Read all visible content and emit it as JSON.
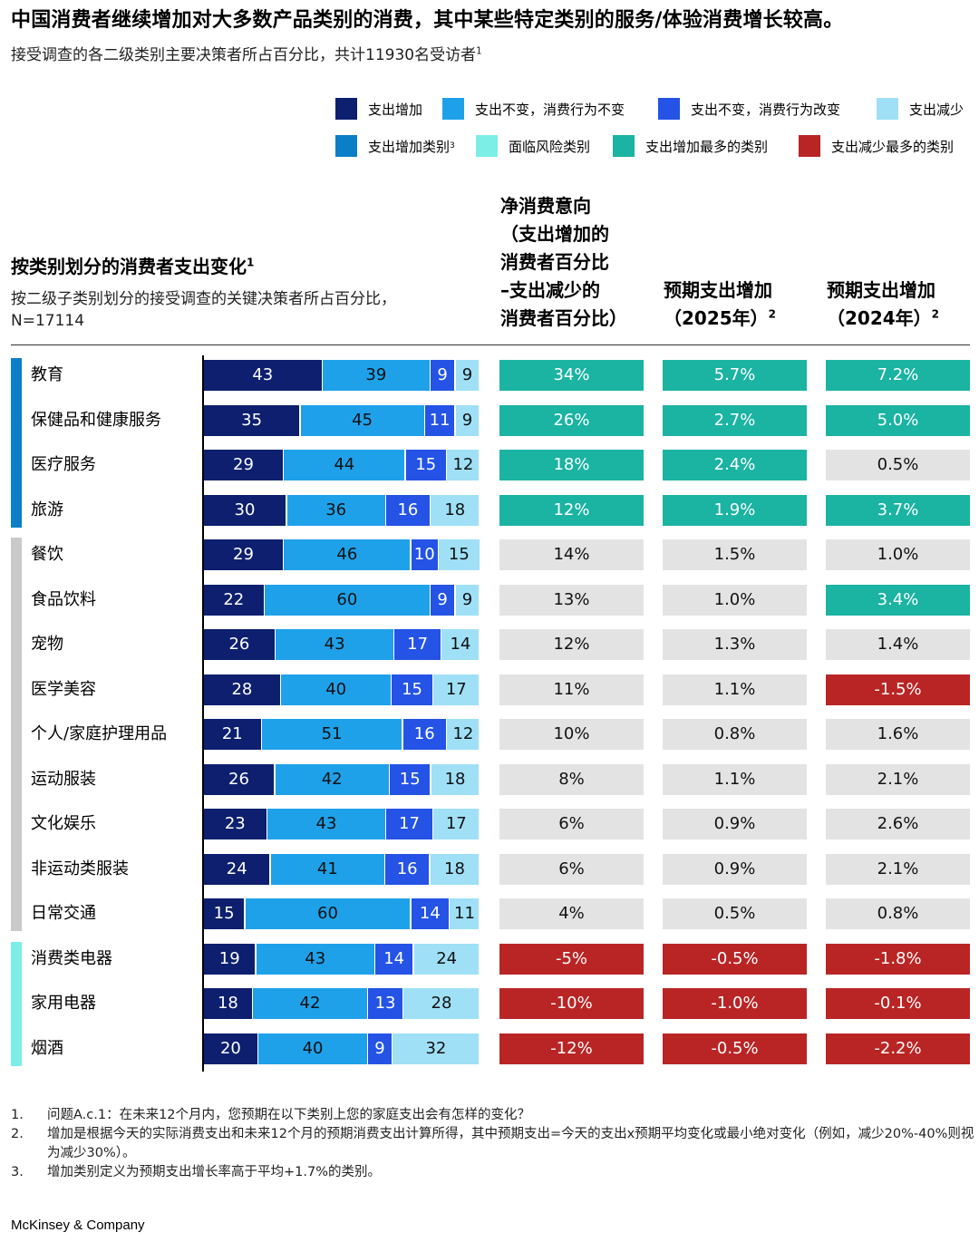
{
  "title": "中国消费者继续增加对大多数产品类别的消费，其中某些特定类别的服务/体验消费增长较高。",
  "subtitle": "接受调查的各二级类别主要决策者所占百分比，共计11930名受访者",
  "subtitle_sup": "1",
  "colors": {
    "increase": "#0d1f6e",
    "same_same": "#1fa1ea",
    "same_change": "#2453e6",
    "decrease": "#9fe0f7",
    "increase_category": "#0a7fc7",
    "at_risk": "#7ceee6",
    "top_increase": "#1bb3a2",
    "top_decrease": "#b92525",
    "neutral": "#e3e3e3"
  },
  "legend": [
    {
      "label": "支出增加",
      "sup": "",
      "color": "#0d1f6e"
    },
    {
      "label": "支出不变，消费行为不变",
      "sup": "",
      "color": "#1fa1ea"
    },
    {
      "label": "支出不变，消费行为改变",
      "sup": "",
      "color": "#2453e6"
    },
    {
      "label": "支出减少",
      "sup": "",
      "color": "#9fe0f7"
    },
    {
      "label": "支出增加类别",
      "sup": "3",
      "color": "#0a7fc7"
    },
    {
      "label": "面临风险类别",
      "sup": "",
      "color": "#7ceee6"
    },
    {
      "label": "支出增加最多的类别",
      "sup": "",
      "color": "#1bb3a2"
    },
    {
      "label": "支出减少最多的类别",
      "sup": "",
      "color": "#b92525"
    }
  ],
  "chart_title": "按类别划分的消费者支出变化",
  "chart_title_sup": "1",
  "chart_subtitle_line1": "按二级子类别划分的接受调查的关键决策者所占百分比，",
  "chart_subtitle_line2": "N=17114",
  "col1_header": [
    "净消费意向",
    "（支出增加的",
    "消费者百分比",
    "–支出减少的",
    "消费者百分比）"
  ],
  "col2_header": [
    "预期支出增加",
    "（2025年）"
  ],
  "col2_header_sup": "2",
  "col3_header": [
    "预期支出增加",
    "（2024年）"
  ],
  "col3_header_sup": "2",
  "chart_data": {
    "type": "bar",
    "stacked": true,
    "orientation": "horizontal",
    "categories": [
      "教育",
      "保健品和健康服务",
      "医疗服务",
      "旅游",
      "餐饮",
      "食品饮料",
      "宠物",
      "医学美容",
      "个人/家庭护理用品",
      "运动服装",
      "文化娱乐",
      "非运动类服装",
      "日常交通",
      "消费类电器",
      "家用电器",
      "烟酒"
    ],
    "groups": [
      {
        "name": "支出增加类别",
        "color": "#0a7fc7",
        "rows": [
          0,
          3
        ]
      },
      {
        "name": "",
        "color": "#c9c9c9",
        "rows": [
          4,
          12
        ]
      },
      {
        "name": "面临风险类别",
        "color": "#7ceee6",
        "rows": [
          13,
          15
        ]
      }
    ],
    "series": [
      {
        "name": "支出增加",
        "color": "#0d1f6e",
        "text_color": "#ffffff",
        "values": [
          43,
          35,
          29,
          30,
          29,
          22,
          26,
          28,
          21,
          26,
          23,
          24,
          15,
          19,
          18,
          20
        ]
      },
      {
        "name": "支出不变，消费行为不变",
        "color": "#1fa1ea",
        "text_color": "#111111",
        "values": [
          39,
          45,
          44,
          36,
          46,
          60,
          43,
          40,
          51,
          42,
          43,
          41,
          60,
          43,
          42,
          40
        ]
      },
      {
        "name": "支出不变，消费行为改变",
        "color": "#2453e6",
        "text_color": "#ffffff",
        "values": [
          9,
          11,
          15,
          16,
          10,
          9,
          17,
          15,
          16,
          15,
          17,
          16,
          14,
          14,
          13,
          9
        ]
      },
      {
        "name": "支出减少",
        "color": "#9fe0f7",
        "text_color": "#111111",
        "values": [
          9,
          9,
          12,
          18,
          15,
          9,
          14,
          17,
          12,
          18,
          17,
          18,
          11,
          24,
          28,
          32
        ]
      }
    ],
    "net_intent": [
      "34%",
      "26%",
      "18%",
      "12%",
      "14%",
      "13%",
      "12%",
      "11%",
      "10%",
      "8%",
      "6%",
      "6%",
      "4%",
      "-5%",
      "-10%",
      "-12%"
    ],
    "net_intent_status": [
      "top_increase",
      "top_increase",
      "top_increase",
      "top_increase",
      "neutral",
      "neutral",
      "neutral",
      "neutral",
      "neutral",
      "neutral",
      "neutral",
      "neutral",
      "neutral",
      "top_decrease",
      "top_decrease",
      "top_decrease"
    ],
    "growth_2025": [
      "5.7%",
      "2.7%",
      "2.4%",
      "1.9%",
      "1.5%",
      "1.0%",
      "1.3%",
      "1.1%",
      "0.8%",
      "1.1%",
      "0.9%",
      "0.9%",
      "0.5%",
      "-0.5%",
      "-1.0%",
      "-0.5%"
    ],
    "growth_2025_status": [
      "top_increase",
      "top_increase",
      "top_increase",
      "top_increase",
      "neutral",
      "neutral",
      "neutral",
      "neutral",
      "neutral",
      "neutral",
      "neutral",
      "neutral",
      "neutral",
      "top_decrease",
      "top_decrease",
      "top_decrease"
    ],
    "growth_2024": [
      "7.2%",
      "5.0%",
      "0.5%",
      "3.7%",
      "1.0%",
      "3.4%",
      "1.4%",
      "-1.5%",
      "1.6%",
      "2.1%",
      "2.6%",
      "2.1%",
      "0.8%",
      "-1.8%",
      "-0.1%",
      "-2.2%"
    ],
    "growth_2024_status": [
      "top_increase",
      "top_increase",
      "neutral",
      "top_increase",
      "neutral",
      "top_increase",
      "neutral",
      "top_decrease",
      "neutral",
      "neutral",
      "neutral",
      "neutral",
      "neutral",
      "top_decrease",
      "top_decrease",
      "top_decrease"
    ]
  },
  "footnotes": [
    {
      "num": "1.",
      "text": "问题A.c.1：在未来12个月内，您预期在以下类别上您的家庭支出会有怎样的变化？"
    },
    {
      "num": "2.",
      "text": "增加是根据今天的实际消费支出和未来12个月的预期消费支出计算所得，其中预期支出=今天的支出x预期平均变化或最小绝对变化（例如，减少20%-40%则视为减少30%）。"
    },
    {
      "num": "3.",
      "text": "增加类别定义为预期支出增长率高于平均+1.7%的类别。"
    }
  ],
  "footer": "McKinsey & Company"
}
